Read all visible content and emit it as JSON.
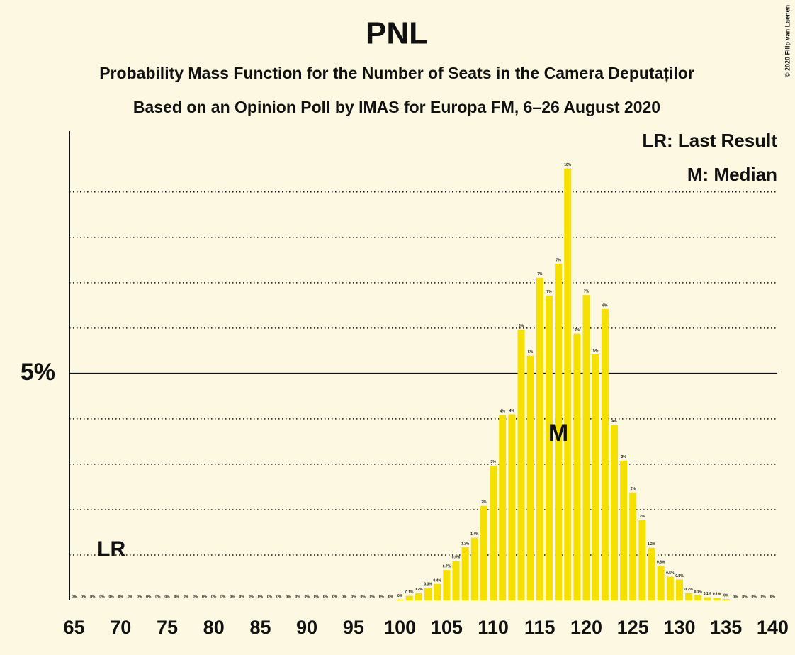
{
  "chart_data": {
    "type": "bar",
    "title": "PNL",
    "subtitle": [
      "Probability Mass Function for the Number of Seats in the Camera Deputaților",
      "Based on an Opinion Poll by IMAS for Europa FM, 6–26 August 2020"
    ],
    "copyright": "© 2020 Filip van Laenen",
    "color": "#f5e000",
    "x": [
      65,
      66,
      67,
      68,
      69,
      70,
      71,
      72,
      73,
      74,
      75,
      76,
      77,
      78,
      79,
      80,
      81,
      82,
      83,
      84,
      85,
      86,
      87,
      88,
      89,
      90,
      91,
      92,
      93,
      94,
      95,
      96,
      97,
      98,
      99,
      100,
      101,
      102,
      103,
      104,
      105,
      106,
      107,
      108,
      109,
      110,
      111,
      112,
      113,
      114,
      115,
      116,
      117,
      118,
      119,
      120,
      121,
      122,
      123,
      124,
      125,
      126,
      127,
      128,
      129,
      130,
      131,
      132,
      133,
      134,
      135,
      136,
      137,
      138,
      139,
      140
    ],
    "values": [
      0,
      0,
      0,
      0,
      0,
      0,
      0,
      0,
      0,
      0,
      0,
      0,
      0,
      0,
      0,
      0,
      0,
      0,
      0,
      0,
      0,
      0,
      0,
      0,
      0,
      0,
      0,
      0,
      0,
      0,
      0,
      0,
      0,
      0,
      0,
      0.02,
      0.1,
      0.16,
      0.28,
      0.36,
      0.67,
      0.87,
      1.17,
      1.38,
      2.08,
      2.97,
      4.09,
      4.1,
      5.97,
      5.39,
      7.11,
      6.72,
      7.42,
      9.52,
      5.88,
      6.73,
      5.42,
      6.42,
      3.86,
      3.08,
      2.38,
      1.77,
      1.16,
      0.76,
      0.52,
      0.46,
      0.16,
      0.11,
      0.07,
      0.06,
      0.03,
      0,
      0,
      0,
      0,
      0
    ],
    "value_labels": [
      "0%",
      "0%",
      "0%",
      "0%",
      "0%",
      "0%",
      "0%",
      "0%",
      "0%",
      "0%",
      "0%",
      "0%",
      "0%",
      "0%",
      "0%",
      "0%",
      "0%",
      "0%",
      "0%",
      "0%",
      "0%",
      "0%",
      "0%",
      "0%",
      "0%",
      "0%",
      "0%",
      "0%",
      "0%",
      "0%",
      "0%",
      "0%",
      "0%",
      "0%",
      "0%",
      "0%",
      "0.1%",
      "0.2%",
      "0.3%",
      "0.4%",
      "0.7%",
      "0.9%",
      "1.2%",
      "1.4%",
      "2%",
      "3%",
      "4%",
      "4%",
      "6%",
      "5%",
      "7%",
      "7%",
      "7%",
      "10%",
      "6%",
      "7%",
      "5%",
      "6%",
      "4%",
      "3%",
      "2%",
      "2%",
      "1.2%",
      "0.8%",
      "0.5%",
      "0.5%",
      "0.2%",
      "0.1%",
      "0.1%",
      "0.1%",
      "0%",
      "0%",
      "0%",
      "0%",
      "0%",
      "0%"
    ],
    "xlim": [
      64.5,
      140.5
    ],
    "xticks": [
      65,
      70,
      75,
      80,
      85,
      90,
      95,
      100,
      105,
      110,
      115,
      120,
      125,
      130,
      135,
      140
    ],
    "ylim": [
      0,
      10.34
    ],
    "yticks": [
      {
        "value": 5,
        "label": "5%"
      }
    ],
    "ygrid": [
      1,
      2,
      3,
      4,
      6,
      7,
      8,
      9
    ],
    "annotations": [
      {
        "text": "LR",
        "x": 69
      },
      {
        "text": "M",
        "x": 117
      }
    ],
    "legend": {
      "entries": [
        "LR: Last Result",
        "M: Median"
      ],
      "position": "upper right"
    }
  }
}
